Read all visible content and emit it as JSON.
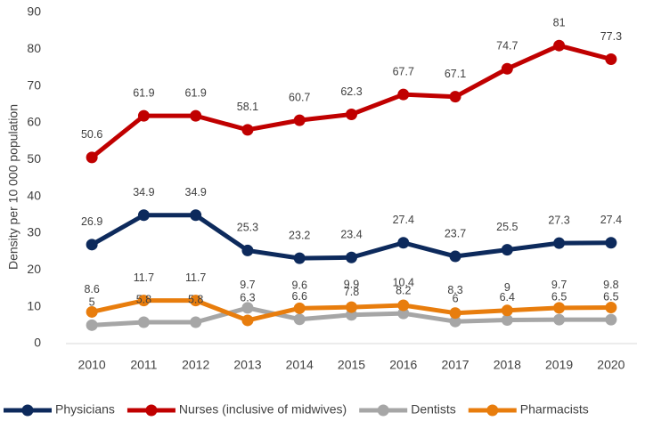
{
  "chart_data": {
    "type": "line",
    "y_label": "Density per 10 000 population",
    "categories": [
      "2010",
      "2011",
      "2012",
      "2013",
      "2014",
      "2015",
      "2016",
      "2017",
      "2018",
      "2019",
      "2020"
    ],
    "series": [
      {
        "name": "Physicians",
        "color": "#0d2a5c",
        "values": [
          26.9,
          34.9,
          34.9,
          25.3,
          23.2,
          23.4,
          27.4,
          23.7,
          25.5,
          27.3,
          27.4
        ]
      },
      {
        "name": "Nurses (inclusive of midwives)",
        "color": "#c00000",
        "values": [
          50.6,
          61.9,
          61.9,
          58.1,
          60.7,
          62.3,
          67.7,
          67.1,
          74.7,
          81,
          77.3
        ]
      },
      {
        "name": "Dentists",
        "color": "#a6a6a6",
        "values": [
          5,
          5.8,
          5.8,
          9.7,
          6.6,
          7.8,
          8.2,
          6,
          6.4,
          6.5,
          6.5
        ]
      },
      {
        "name": "Pharmacists",
        "color": "#e87d0d",
        "values": [
          8.6,
          11.7,
          11.7,
          6.3,
          9.6,
          9.9,
          10.4,
          8.3,
          9,
          9.7,
          9.8
        ]
      }
    ],
    "ylim": [
      0,
      90
    ],
    "yticks": [
      0,
      10,
      20,
      30,
      40,
      50,
      60,
      70,
      80,
      90
    ],
    "grid": false
  }
}
